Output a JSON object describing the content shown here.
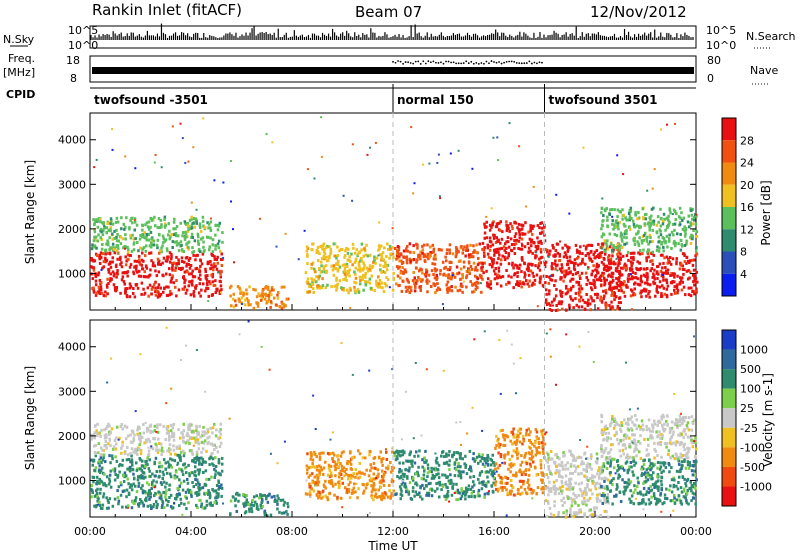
{
  "header": {
    "station": "Rankin Inlet (fitACF)",
    "beam": "Beam 07",
    "date": "12/Nov/2012"
  },
  "strip": {
    "nsky_label": "N.Sky",
    "nsky_ticks": [
      "10^5",
      "10^0"
    ],
    "nsearch_label": "N.Search",
    "nsearch_ticks": [
      "10^5",
      "10^0"
    ],
    "freq_label": "Freq.",
    "freq_unit": "[MHz]",
    "freq_ticks": [
      "18",
      "8"
    ],
    "nave_label": "Nave",
    "nave_ticks": [
      "80",
      "0"
    ],
    "cpid_label": "CPID",
    "cpid_segments": [
      {
        "label": "twofsound -3501",
        "start_hour": 0
      },
      {
        "label": "normal 150",
        "start_hour": 12
      },
      {
        "label": "twofsound 3501",
        "start_hour": 18
      }
    ]
  },
  "colors": {
    "power_scale": [
      "#0a1ef0",
      "#2b4fb8",
      "#2e8b6e",
      "#5bbf5b",
      "#f0c020",
      "#f08a10",
      "#f05010",
      "#e81010"
    ],
    "velocity_scale": [
      "#1a3dc8",
      "#2e6a9e",
      "#2e8b6e",
      "#7ccf4a",
      "#c8c8c8",
      "#f0c020",
      "#f08a10",
      "#f04a10",
      "#e81010"
    ]
  },
  "chart_data": [
    {
      "type": "heatmap",
      "panel": "power",
      "ylabel": "Slant Range [km]",
      "y_ticks": [
        1000,
        2000,
        3000,
        4000
      ],
      "ylim": [
        180,
        4600
      ],
      "colorbar_label": "Power [dB]",
      "colorbar_ticks": [
        "28",
        "24",
        "20",
        "16",
        "12",
        "8",
        "4"
      ],
      "x_markers_hours": [
        12,
        18
      ],
      "regions": [
        {
          "t0": 0.0,
          "t1": 5.2,
          "r0": 500,
          "r1": 1500,
          "level": 7
        },
        {
          "t0": 0.0,
          "t1": 5.2,
          "r0": 1500,
          "r1": 2300,
          "level": 3
        },
        {
          "t0": 5.5,
          "t1": 7.8,
          "r0": 250,
          "r1": 750,
          "level": 5
        },
        {
          "t0": 8.5,
          "t1": 12.0,
          "r0": 600,
          "r1": 1700,
          "level": 4
        },
        {
          "t0": 12.0,
          "t1": 15.5,
          "r0": 600,
          "r1": 1700,
          "level": 6
        },
        {
          "t0": 15.5,
          "t1": 18.0,
          "r0": 700,
          "r1": 2200,
          "level": 7
        },
        {
          "t0": 18.0,
          "t1": 21.0,
          "r0": 200,
          "r1": 1700,
          "level": 7
        },
        {
          "t0": 20.2,
          "t1": 24.0,
          "r0": 500,
          "r1": 1500,
          "level": 7
        },
        {
          "t0": 20.2,
          "t1": 24.0,
          "r0": 1500,
          "r1": 2500,
          "level": 3
        }
      ]
    },
    {
      "type": "heatmap",
      "panel": "velocity",
      "ylabel": "Slant Range [km]",
      "xlabel": "Time UT",
      "x_ticks": [
        "00:00",
        "04:00",
        "08:00",
        "12:00",
        "16:00",
        "20:00",
        "00:00"
      ],
      "y_ticks": [
        1000,
        2000,
        3000,
        4000
      ],
      "ylim": [
        180,
        4600
      ],
      "colorbar_label": "Velocity [m s-1]",
      "colorbar_ticks": [
        "1000",
        "500",
        "100",
        "25",
        "-25",
        "-100",
        "-500",
        "-1000"
      ],
      "x_markers_hours": [
        12,
        18
      ],
      "regions": [
        {
          "t0": 0.0,
          "t1": 5.2,
          "r0": 400,
          "r1": 1600,
          "level": 2
        },
        {
          "t0": 0.0,
          "t1": 5.2,
          "r0": 1600,
          "r1": 2300,
          "level": 4
        },
        {
          "t0": 5.5,
          "t1": 7.8,
          "r0": 250,
          "r1": 750,
          "level": 2
        },
        {
          "t0": 8.5,
          "t1": 12.0,
          "r0": 600,
          "r1": 1700,
          "level": 6
        },
        {
          "t0": 12.0,
          "t1": 16.0,
          "r0": 600,
          "r1": 1700,
          "level": 2
        },
        {
          "t0": 16.0,
          "t1": 18.0,
          "r0": 700,
          "r1": 2200,
          "level": 6
        },
        {
          "t0": 18.0,
          "t1": 20.5,
          "r0": 200,
          "r1": 1700,
          "level": 4
        },
        {
          "t0": 20.2,
          "t1": 24.0,
          "r0": 500,
          "r1": 1500,
          "level": 2
        },
        {
          "t0": 20.2,
          "t1": 24.0,
          "r0": 1500,
          "r1": 2500,
          "level": 4
        }
      ]
    }
  ]
}
